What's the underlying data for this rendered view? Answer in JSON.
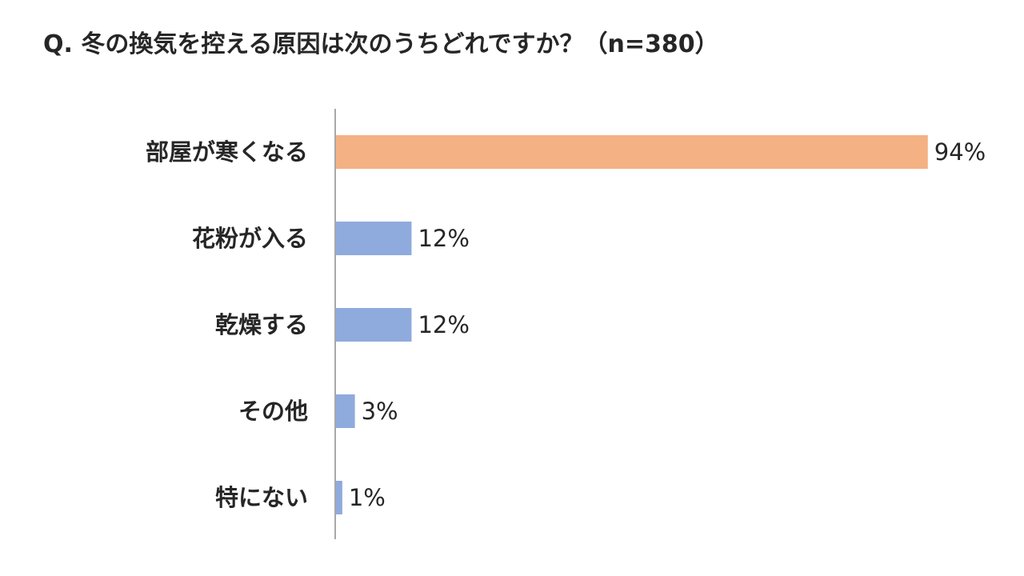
{
  "title": "Q. 冬の換気を控える原因は次のうちどれですか？（n=380）",
  "colors": {
    "highlight": "#F4B183",
    "default": "#8FAADC",
    "axis": "#8C8C8C",
    "text": "#262626"
  },
  "chart_data": {
    "type": "bar",
    "orientation": "horizontal",
    "title": "Q. 冬の換気を控える原因は次のうちどれですか？（n=380）",
    "categories": [
      "部屋が寒くなる",
      "花粉が入る",
      "乾燥する",
      "その他",
      "特にない"
    ],
    "values": [
      94,
      12,
      12,
      3,
      1
    ],
    "value_labels": [
      "94%",
      "12%",
      "12%",
      "3%",
      "1%"
    ],
    "unit": "%",
    "xlim": [
      0,
      100
    ],
    "highlight_index": 0,
    "grid": false,
    "legend": "none"
  }
}
